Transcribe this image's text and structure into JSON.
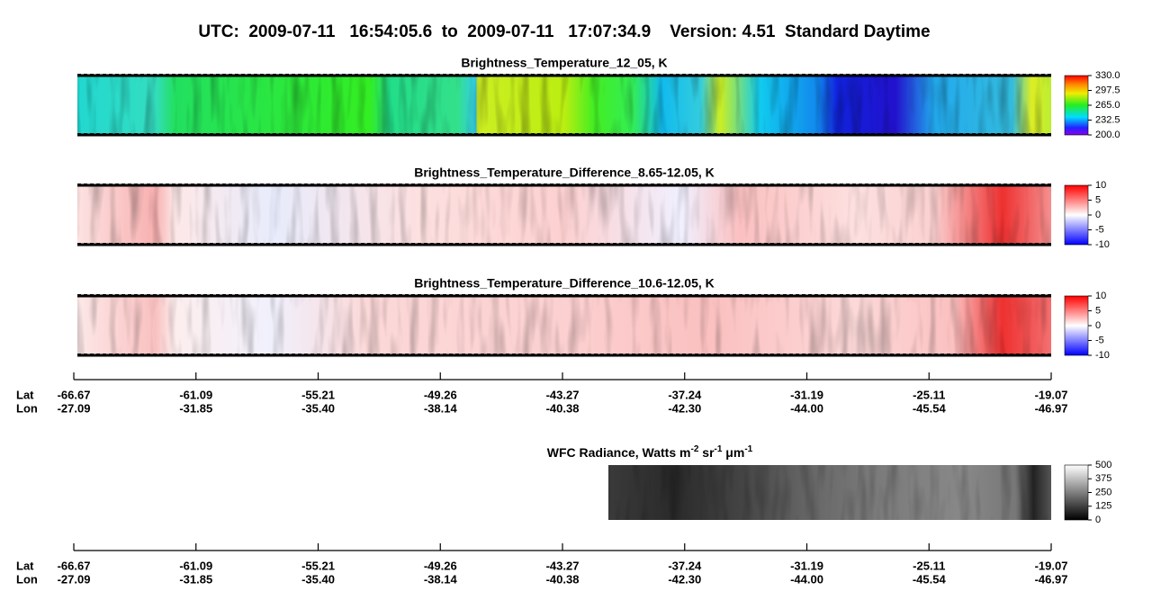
{
  "title": "UTC:  2009-07-11   16:54:05.6  to  2009-07-11   17:07:34.9    Version: 4.51  Standard Daytime",
  "chart_data": [
    {
      "type": "heatmap",
      "title": "Brightness_Temperature_12_05, K",
      "colormap": "rainbow",
      "clim": [
        200,
        330
      ],
      "cticks": [
        {
          "value": 200,
          "label": "200.0"
        },
        232.5,
        {
          "value": 265,
          "label": "265.0"
        },
        297.5,
        {
          "value": 330,
          "label": "330.0"
        }
      ]
    },
    {
      "type": "heatmap",
      "title": "Brightness_Temperature_Difference_8.65-12.05, K",
      "colormap": "diverging",
      "clim": [
        -10,
        10
      ],
      "cticks": [
        -10,
        -5,
        0,
        5,
        10
      ]
    },
    {
      "type": "heatmap",
      "title": "Brightness_Temperature_Difference_10.6-12.05, K",
      "colormap": "diverging",
      "clim": [
        -10,
        10
      ],
      "cticks": [
        -10,
        -5,
        0,
        5,
        10
      ]
    },
    {
      "type": "axis",
      "rows": [
        {
          "label": "Lat",
          "ticks": [
            -66.67,
            -61.09,
            -55.21,
            -49.26,
            -43.27,
            -37.24,
            -31.19,
            -25.11,
            -19.07
          ]
        },
        {
          "label": "Lon",
          "ticks": [
            -27.09,
            -31.85,
            {
              "value": -35.4,
              "label": "-35.40"
            },
            -38.14,
            -40.38,
            {
              "value": -42.3,
              "label": "-42.30"
            },
            {
              "value": -44,
              "label": "-44.00"
            },
            -45.54,
            -46.97
          ]
        }
      ]
    },
    {
      "type": "heatmap",
      "title_parts": [
        "WFC Radiance, Watts m",
        "-2",
        " sr",
        "-1",
        " μm",
        "-1"
      ],
      "colormap": "gray",
      "clim": [
        0,
        500
      ],
      "cticks": [
        0,
        125,
        250,
        375,
        500
      ]
    },
    {
      "type": "axis",
      "rows": [
        {
          "label": "Lat",
          "ticks": [
            -66.67,
            -61.09,
            -55.21,
            -49.26,
            -43.27,
            -37.24,
            -31.19,
            -25.11,
            -19.07
          ]
        },
        {
          "label": "Lon",
          "ticks": [
            -27.09,
            -31.85,
            {
              "value": -35.4,
              "label": "-35.40"
            },
            -38.14,
            -40.38,
            {
              "value": -42.3,
              "label": "-42.30"
            },
            {
              "value": -44,
              "label": "-44.00"
            },
            -45.54,
            -46.97
          ]
        }
      ]
    }
  ]
}
